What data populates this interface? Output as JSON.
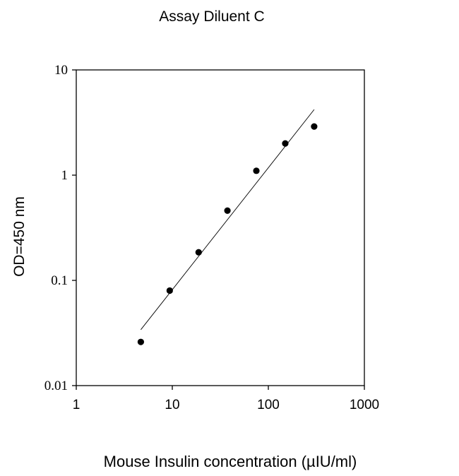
{
  "chart_data": {
    "type": "scatter",
    "title": "Assay Diluent C",
    "xlabel": "Mouse Insulin concentration (µIU/ml)",
    "ylabel": "OD=450 nm",
    "xscale": "log",
    "yscale": "log",
    "xlim": [
      1,
      1000
    ],
    "ylim": [
      0.01,
      10
    ],
    "xticks": [
      "1",
      "10",
      "100",
      "1000"
    ],
    "yticks": [
      "0.01",
      "0.1",
      "1",
      "10"
    ],
    "grid": false,
    "legend": "none",
    "series": [
      {
        "marker": "filled-circle",
        "x": [
          4.7,
          9.4,
          18.8,
          37.5,
          75,
          150,
          300
        ],
        "y": [
          0.026,
          0.08,
          0.185,
          0.46,
          1.1,
          2.0,
          2.9
        ]
      }
    ],
    "fit_line": {
      "style": "solid-thin",
      "x": [
        4.7,
        300
      ],
      "y": [
        0.034,
        4.2
      ]
    },
    "colors": {
      "marker": "#000000",
      "line": "#000000",
      "axes": "#000000"
    }
  }
}
